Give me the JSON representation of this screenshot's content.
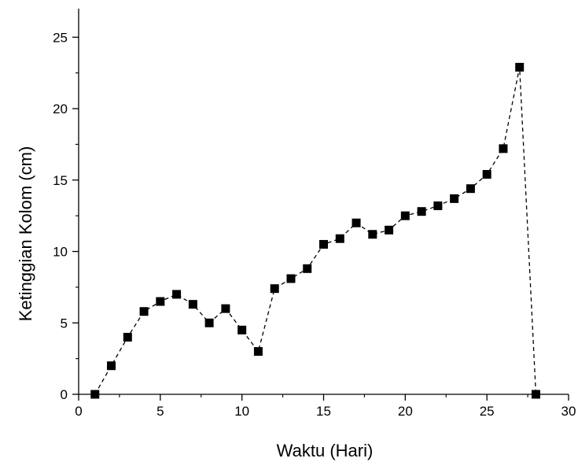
{
  "chart_data": {
    "type": "line",
    "title": "",
    "xlabel": "Waktu (Hari)",
    "ylabel": "Ketinggian Kolom (cm)",
    "xlim": [
      0,
      30
    ],
    "ylim": [
      0,
      27
    ],
    "x_ticks": [
      0,
      5,
      10,
      15,
      20,
      25,
      30
    ],
    "y_ticks": [
      0,
      5,
      10,
      15,
      20,
      25
    ],
    "grid": false,
    "legend": "none",
    "marker": "square",
    "line_style": "dashed",
    "color": "#000000",
    "series": [
      {
        "x": [
          1,
          2,
          3,
          4,
          5,
          6,
          7,
          8,
          9,
          10,
          11,
          12,
          13,
          14,
          15,
          16,
          17,
          18,
          19,
          20,
          21,
          22,
          23,
          24,
          25,
          26,
          27,
          28
        ],
        "values": [
          0,
          2,
          4,
          5.8,
          6.5,
          7,
          6.3,
          5,
          6,
          4.5,
          3,
          7.4,
          8.1,
          8.8,
          10.5,
          10.9,
          12,
          11.2,
          11.5,
          12.5,
          12.8,
          13.2,
          13.7,
          14.4,
          15.4,
          17.2,
          22.9,
          0
        ]
      }
    ]
  }
}
